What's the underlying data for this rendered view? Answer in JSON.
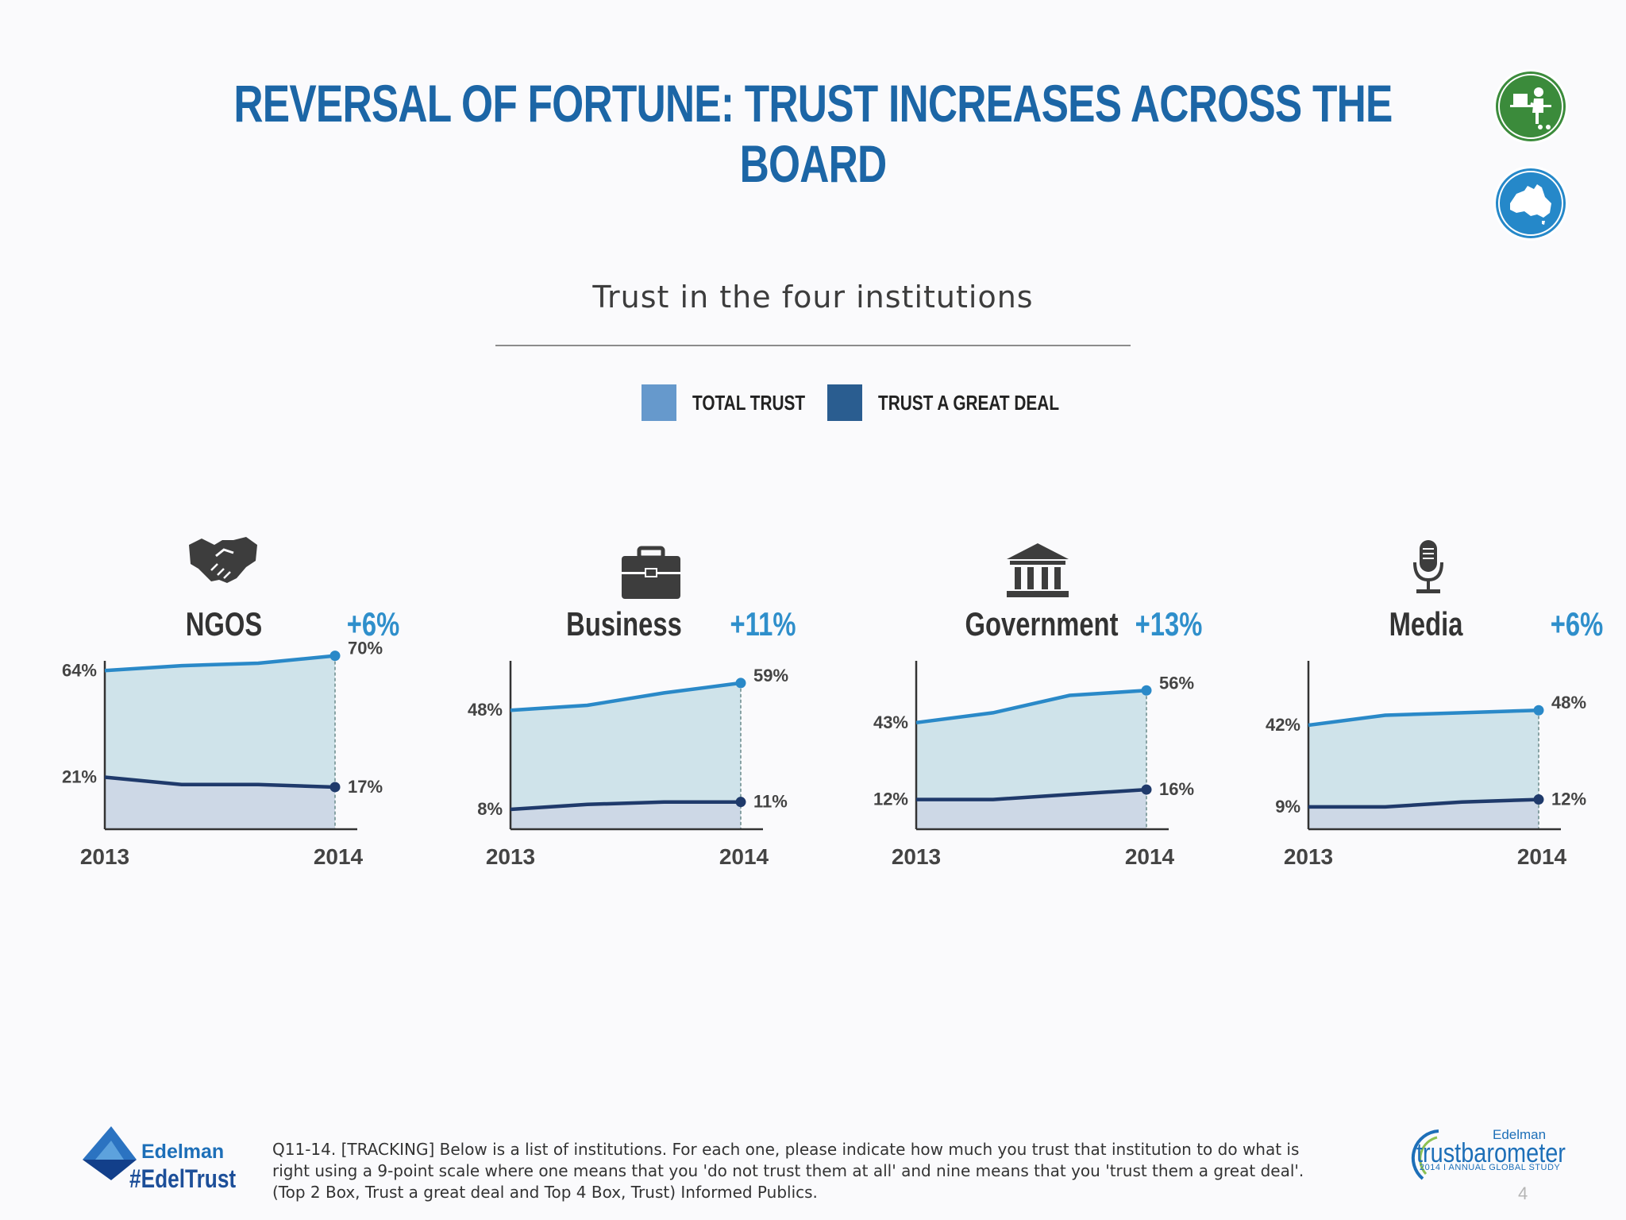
{
  "title": "REVERSAL OF FORTUNE: TRUST INCREASES ACROSS THE BOARD",
  "badges": [
    {
      "icon": "person-at-computer-icon",
      "color": "#3b8b3b"
    },
    {
      "icon": "australia-map-icon",
      "color": "#2588c9"
    }
  ],
  "colors": {
    "total_trust": "#2a89c8",
    "great_deal": "#1f3a6b",
    "total_fill": "#cfe3ea",
    "great_fill": "#cdd8e6"
  },
  "chart_data": {
    "title": "Trust in the four institutions",
    "type": "area",
    "legend": [
      {
        "label": "TOTAL TRUST",
        "color": "#6699cc"
      },
      {
        "label": "TRUST A GREAT DEAL",
        "color": "#2a5d90"
      }
    ],
    "x_start_label": "2013",
    "x_end_label": "2014",
    "ylim": [
      0,
      75
    ],
    "panels": [
      {
        "name": "NGOS",
        "icon": "handshake-icon",
        "change": "+6%",
        "total_trust": [
          64,
          66,
          67,
          70
        ],
        "great_deal": [
          21,
          18,
          18,
          17
        ],
        "labels": {
          "total_start": "64%",
          "total_end": "70%",
          "great_start": "21%",
          "great_end": "17%"
        }
      },
      {
        "name": "Business",
        "icon": "briefcase-icon",
        "change": "+11%",
        "total_trust": [
          48,
          50,
          55,
          59
        ],
        "great_deal": [
          8,
          10,
          11,
          11
        ],
        "labels": {
          "total_start": "48%",
          "total_end": "59%",
          "great_start": "8%",
          "great_end": "11%"
        }
      },
      {
        "name": "Government",
        "icon": "government-building-icon",
        "change": "+13%",
        "total_trust": [
          43,
          47,
          54,
          56
        ],
        "great_deal": [
          12,
          12,
          14,
          16
        ],
        "labels": {
          "total_start": "43%",
          "total_end": "56%",
          "great_start": "12%",
          "great_end": "16%"
        }
      },
      {
        "name": "Media",
        "icon": "microphone-icon",
        "change": "+6%",
        "total_trust": [
          42,
          46,
          47,
          48
        ],
        "great_deal": [
          9,
          9,
          11,
          12
        ],
        "labels": {
          "total_start": "42%",
          "total_end": "48%",
          "great_start": "9%",
          "great_end": "12%"
        }
      }
    ]
  },
  "footer": {
    "brand": "Edelman",
    "hashtag": "#EdelTrust",
    "note": "Q11-14. [TRACKING] Below is a list of institutions. For each one, please indicate how much you trust that institution to do what is right using a 9-point scale where one means that you 'do not trust them at all' and nine means that you 'trust them a great deal'. (Top 2 Box, Trust a great deal and Top 4 Box, Trust) Informed Publics.",
    "tb_brand": "Edelman",
    "tb_name": "trustbarometer",
    "tb_study": "2014 I ANNUAL GLOBAL STUDY",
    "page": "4"
  }
}
